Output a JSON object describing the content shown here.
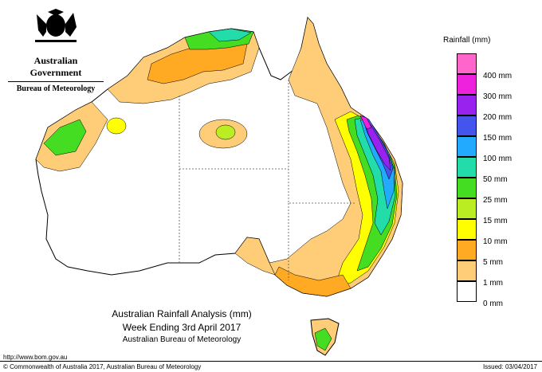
{
  "header": {
    "government": "Australian Government",
    "bureau": "Bureau of Meteorology"
  },
  "legend": {
    "title": "Rainfall (mm)",
    "items": [
      {
        "label": "400 mm",
        "color": "#ff66cc"
      },
      {
        "label": "300 mm",
        "color": "#ee22dd"
      },
      {
        "label": "200 mm",
        "color": "#9922ee"
      },
      {
        "label": "150 mm",
        "color": "#4455ee"
      },
      {
        "label": "100 mm",
        "color": "#22aaff"
      },
      {
        "label": "50 mm",
        "color": "#22ddaa"
      },
      {
        "label": "25 mm",
        "color": "#44dd22"
      },
      {
        "label": "15 mm",
        "color": "#bbee22"
      },
      {
        "label": "10 mm",
        "color": "#ffff00"
      },
      {
        "label": "5 mm",
        "color": "#ffaa22"
      },
      {
        "label": "1 mm",
        "color": "#ffcc77"
      },
      {
        "label": "0 mm",
        "color": "#ffffff"
      }
    ]
  },
  "caption": {
    "line1": "Australian Rainfall Analysis (mm)",
    "line2": "Week Ending 3rd April 2017",
    "line3": "Australian Bureau of Meteorology"
  },
  "footer": {
    "url": "http://www.bom.gov.au",
    "copyright": "© Commonwealth of Australia 2017, Australian Bureau of Meteorology",
    "issued": "Issued: 03/04/2017"
  },
  "colors": {
    "c1": "#ffcc77",
    "c5": "#ffaa22",
    "c10": "#ffff00",
    "c15": "#bbee22",
    "c25": "#44dd22",
    "c50": "#22ddaa",
    "c100": "#22aaff",
    "c150": "#4455ee",
    "c200": "#9922ee",
    "c300": "#ee22dd"
  }
}
